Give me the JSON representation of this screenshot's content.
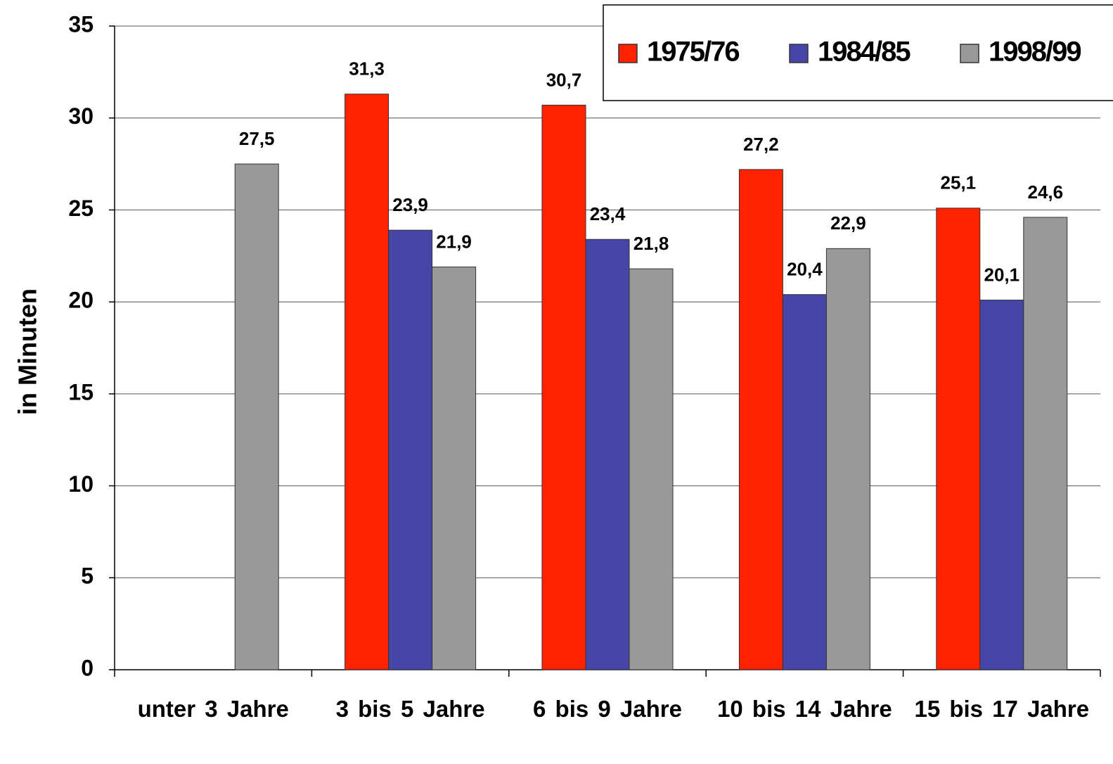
{
  "chart_data": {
    "type": "bar",
    "y_label": "in Minuten",
    "categories": [
      "unter 3 Jahre",
      "3 bis 5 Jahre",
      "6 bis 9 Jahre",
      "10 bis 14 Jahre",
      "15 bis 17 Jahre"
    ],
    "series": [
      {
        "name": "1975/76",
        "color": "#ff2200",
        "values": [
          null,
          31.3,
          30.7,
          27.2,
          25.1
        ],
        "value_labels": [
          null,
          "31,3",
          "30,7",
          "27,2",
          "25,1"
        ]
      },
      {
        "name": "1984/85",
        "color": "#4646a8",
        "values": [
          null,
          23.9,
          23.4,
          20.4,
          20.1
        ],
        "value_labels": [
          null,
          "23,9",
          "23,4",
          "20,4",
          "20,1"
        ]
      },
      {
        "name": "1998/99",
        "color": "#999999",
        "values": [
          27.5,
          21.9,
          21.8,
          22.9,
          24.6
        ],
        "value_labels": [
          "27,5",
          "21,9",
          "21,8",
          "22,9",
          "24,6"
        ]
      }
    ],
    "ylim": [
      0,
      35
    ],
    "yticks": [
      0,
      5,
      10,
      15,
      20,
      25,
      30,
      35
    ],
    "grid": true,
    "legend": "upper right"
  }
}
